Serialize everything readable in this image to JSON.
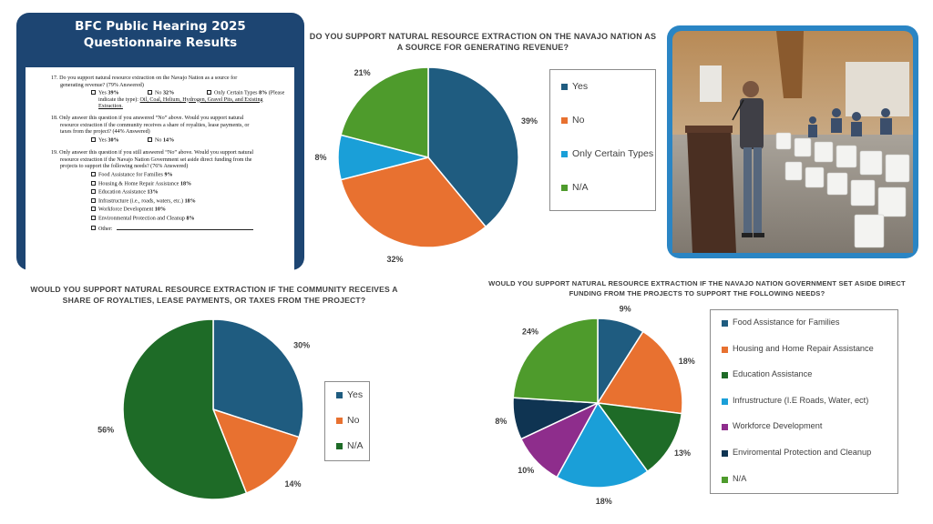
{
  "questionnaire": {
    "title_line1": "BFC Public Hearing 2025",
    "title_line2": "Questionnaire Results",
    "q17_line1": "17. Do you support natural resource extraction on the Navajo Nation as a source for",
    "q17_line2": "generating revenue? (79% Answered)",
    "q17_yes": "Yes",
    "q17_yes_pct": "39%",
    "q17_no": "No",
    "q17_no_pct": "32%",
    "q17_only_a": "Only Certain Types",
    "q17_only_pct": "8%",
    "q17_only_b": "(Please",
    "q17_types_prefix": "indicate the type):",
    "q17_types": "Oil, Coal, Helium, Hydrogen, Gravel Pits, and Existing",
    "q17_types2": "Extraction.",
    "q18_line1": "18. Only answer this question if you answered “No” above. Would you support natural",
    "q18_line2": "resource extraction if the community receives a share of royalties, lease payments, or",
    "q18_line3": "taxes from the project? (44% Answered)",
    "q18_yes": "Yes",
    "q18_yes_pct": "30%",
    "q18_no": "No",
    "q18_no_pct": "14%",
    "q19_line1": "19. Only answer this question if you still answered “No” above. Would you support natural",
    "q19_line2": "resource extraction if the Navajo Nation Government set aside direct funding from the",
    "q19_line3": "projects to support the following needs? (76% Answered)",
    "q19_options": [
      {
        "label": "Food Assistance for Families",
        "pct": "9%"
      },
      {
        "label": "Housing & Home Repair Assistance",
        "pct": "18%"
      },
      {
        "label": "Education Assistance",
        "pct": "13%"
      },
      {
        "label": "Infrastructure (i.e., roads, waters, etc.)",
        "pct": "18%"
      },
      {
        "label": "Workforce Development",
        "pct": "10%"
      },
      {
        "label": "Environmental Protection and Cleanup",
        "pct": "8%"
      },
      {
        "label": "Other:",
        "pct": ""
      }
    ]
  },
  "chart_data": [
    {
      "type": "pie",
      "title_line1": "DO YOU SUPPORT NATURAL RESOURCE EXTRACTION ON THE NAVAJO NATION AS",
      "title_line2": "A SOURCE FOR GENERATING REVENUE?",
      "categories": [
        "Yes",
        "No",
        "Only Certain Types",
        "N/A"
      ],
      "values": [
        39,
        32,
        8,
        21
      ],
      "labels": [
        "39%",
        "32%",
        "8%",
        "21%"
      ],
      "colors": [
        "#1f5c80",
        "#e87130",
        "#1a9fd8",
        "#4e9b2c"
      ],
      "legend": "right"
    },
    {
      "type": "pie",
      "title_line1": "WOULD YOU SUPPORT NATURAL RESOURCE EXTRACTION IF THE COMMUNITY RECEIVES A",
      "title_line2": "SHARE OF ROYALTIES, LEASE PAYMENTS, OR TAXES FROM THE PROJECT?",
      "categories": [
        "Yes",
        "No",
        "N/A"
      ],
      "values": [
        30,
        14,
        56
      ],
      "labels": [
        "30%",
        "14%",
        "56%"
      ],
      "colors": [
        "#1f5c80",
        "#e87130",
        "#1e6b27"
      ],
      "legend": "right"
    },
    {
      "type": "pie",
      "title_line1": "WOULD YOU SUPPORT NATURAL RESOURCE EXTRACTION IF THE NAVAJO NATION GOVERNMENT SET ASIDE DIRECT",
      "title_line2": "FUNDING FROM THE PROJECTS TO SUPPORT THE FOLLOWING NEEDS?",
      "categories": [
        "Food Assistance for Families",
        "Housing and Home Repair Assistance",
        "Education Assistance",
        "Infrustructure (I.E Roads, Water, ect)",
        "Workforce Development",
        "Enviromental Protection and Cleanup",
        "N/A"
      ],
      "values": [
        9,
        18,
        13,
        18,
        10,
        8,
        24
      ],
      "labels": [
        "9%",
        "18%",
        "13%",
        "18%",
        "10%",
        "8%",
        "24%"
      ],
      "colors": [
        "#1f5c80",
        "#e87130",
        "#1e6b27",
        "#1a9fd8",
        "#8e2d8c",
        "#0f3452",
        "#4e9b2c"
      ],
      "legend": "right"
    }
  ]
}
